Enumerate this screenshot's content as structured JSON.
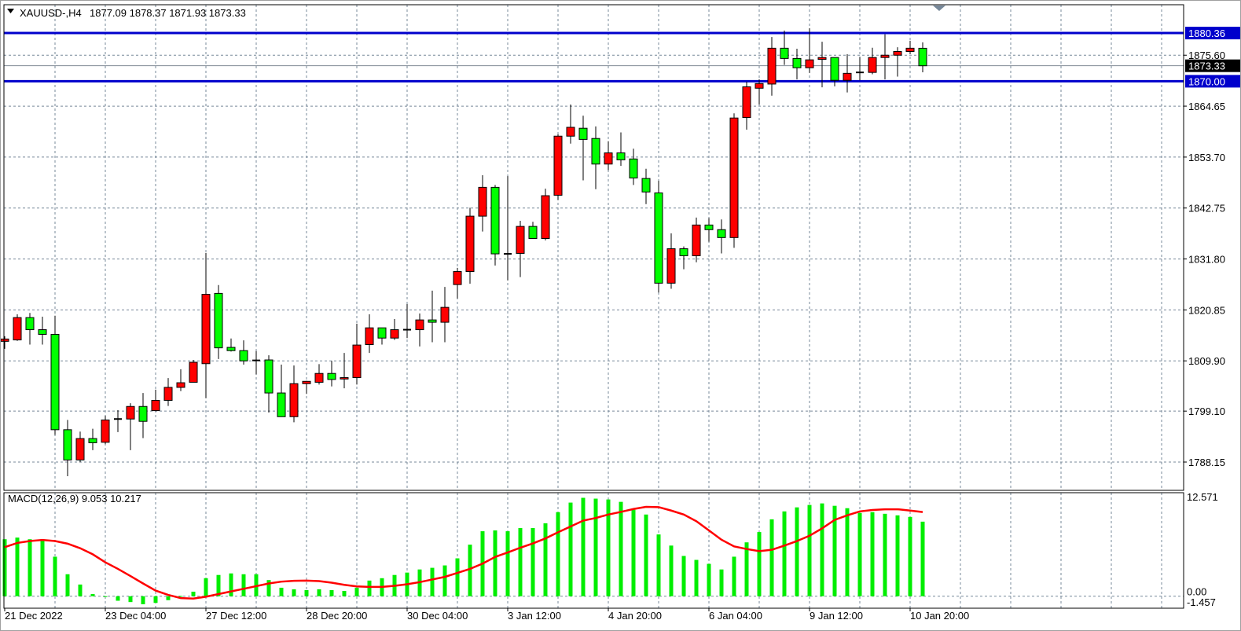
{
  "header": {
    "symbol_label": "XAUUSD-,H4",
    "ohlc_text": "1877.09 1878.37 1871.93 1873.33",
    "menu_icon": "triangle-down-icon",
    "shift_marker_icon": "chart-shift-triangle-icon"
  },
  "colors": {
    "bull_candle": "#ff0000",
    "bear_candle": "#00ff00",
    "horizontal_line": "#0000cc",
    "bid_line": "#808a94",
    "grid": "#778899",
    "macd_histogram": "#00ee00",
    "macd_signal": "#ff0000"
  },
  "chart_data": {
    "type": "candlestick",
    "symbol": "XAUUSD-",
    "timeframe": "H4",
    "grid": true,
    "ylim": [
      1782.07,
      1886.45
    ],
    "price_ticks": [
      "1875.60",
      "1864.65",
      "1853.70",
      "1842.75",
      "1831.80",
      "1820.85",
      "1809.90",
      "1799.10",
      "1788.15"
    ],
    "ohlc_fields": [
      "open",
      "high",
      "low",
      "close"
    ],
    "ohlc": [
      [
        1814.1,
        1815.2,
        1812.5,
        1814.6
      ],
      [
        1814.4,
        1819.9,
        1814.2,
        1819.2
      ],
      [
        1819.2,
        1820.2,
        1813.4,
        1816.6
      ],
      [
        1816.6,
        1819.4,
        1813.4,
        1815.6
      ],
      [
        1815.6,
        1819.6,
        1794.0,
        1795.1
      ],
      [
        1795.1,
        1797.2,
        1785.1,
        1788.6
      ],
      [
        1788.6,
        1794.7,
        1788.1,
        1793.2
      ],
      [
        1793.2,
        1795.3,
        1790.7,
        1792.3
      ],
      [
        1792.4,
        1798.1,
        1792.0,
        1797.2
      ],
      [
        1797.3,
        1799.3,
        1794.6,
        1797.4
      ],
      [
        1797.4,
        1800.8,
        1790.7,
        1800.1
      ],
      [
        1800.1,
        1803.0,
        1793.3,
        1796.9
      ],
      [
        1799.2,
        1803.7,
        1799.2,
        1801.4
      ],
      [
        1801.4,
        1806.2,
        1800.2,
        1804.2
      ],
      [
        1804.2,
        1808.1,
        1803.4,
        1805.2
      ],
      [
        1805.3,
        1810.1,
        1805.3,
        1809.6
      ],
      [
        1809.3,
        1833.1,
        1801.9,
        1824.2
      ],
      [
        1824.4,
        1826.2,
        1810.3,
        1812.7
      ],
      [
        1812.8,
        1814.7,
        1811.9,
        1812.1
      ],
      [
        1812.1,
        1814.3,
        1809.1,
        1809.9
      ],
      [
        1810.0,
        1812.0,
        1807.0,
        1809.9
      ],
      [
        1810.1,
        1811.1,
        1798.8,
        1803.0
      ],
      [
        1803.0,
        1809.1,
        1797.9,
        1797.9
      ],
      [
        1797.9,
        1808.9,
        1796.7,
        1805.0
      ],
      [
        1805.0,
        1805.6,
        1802.8,
        1805.5
      ],
      [
        1805.3,
        1809.2,
        1804.8,
        1807.2
      ],
      [
        1807.2,
        1809.9,
        1804.4,
        1805.9
      ],
      [
        1806.0,
        1811.6,
        1804.0,
        1806.3
      ],
      [
        1806.3,
        1817.9,
        1804.8,
        1813.3
      ],
      [
        1813.4,
        1819.9,
        1811.6,
        1817.0
      ],
      [
        1817.0,
        1817.0,
        1813.4,
        1814.8
      ],
      [
        1814.8,
        1818.9,
        1814.4,
        1816.6
      ],
      [
        1816.6,
        1822.1,
        1814.8,
        1816.5
      ],
      [
        1816.6,
        1820.1,
        1813.0,
        1818.7
      ],
      [
        1818.7,
        1825.0,
        1813.9,
        1818.2
      ],
      [
        1818.2,
        1825.8,
        1813.9,
        1821.4
      ],
      [
        1826.3,
        1829.9,
        1823.3,
        1829.1
      ],
      [
        1829.1,
        1842.8,
        1826.5,
        1841.0
      ],
      [
        1841.0,
        1849.8,
        1837.7,
        1847.2
      ],
      [
        1847.2,
        1847.7,
        1830.4,
        1832.9
      ],
      [
        1832.9,
        1849.6,
        1827.2,
        1832.9
      ],
      [
        1833.0,
        1840.0,
        1827.9,
        1838.8
      ],
      [
        1838.8,
        1839.8,
        1836.2,
        1836.2
      ],
      [
        1836.2,
        1846.9,
        1835.8,
        1845.4
      ],
      [
        1845.5,
        1858.6,
        1844.5,
        1858.2
      ],
      [
        1858.2,
        1865.0,
        1856.6,
        1860.1
      ],
      [
        1859.9,
        1862.6,
        1848.7,
        1857.5
      ],
      [
        1857.7,
        1860.3,
        1846.8,
        1852.2
      ],
      [
        1852.2,
        1857.1,
        1850.9,
        1854.6
      ],
      [
        1854.6,
        1859.0,
        1851.8,
        1853.1
      ],
      [
        1853.3,
        1855.5,
        1847.7,
        1849.2
      ],
      [
        1849.1,
        1851.2,
        1843.6,
        1846.2
      ],
      [
        1846.0,
        1848.6,
        1824.6,
        1826.6
      ],
      [
        1826.6,
        1837.3,
        1825.4,
        1834.0
      ],
      [
        1834.0,
        1834.5,
        1829.6,
        1832.5
      ],
      [
        1832.5,
        1840.7,
        1831.1,
        1839.1
      ],
      [
        1839.1,
        1840.6,
        1835.5,
        1838.1
      ],
      [
        1838.1,
        1840.3,
        1833.0,
        1836.4
      ],
      [
        1836.4,
        1863.1,
        1834.2,
        1862.1
      ],
      [
        1862.2,
        1869.9,
        1859.6,
        1868.8
      ],
      [
        1868.5,
        1870.4,
        1865.0,
        1869.5
      ],
      [
        1869.4,
        1879.5,
        1866.9,
        1877.1
      ],
      [
        1877.1,
        1880.9,
        1873.5,
        1874.9
      ],
      [
        1874.9,
        1877.0,
        1870.4,
        1872.9
      ],
      [
        1872.9,
        1881.4,
        1871.8,
        1874.6
      ],
      [
        1874.7,
        1878.5,
        1868.7,
        1875.1
      ],
      [
        1875.1,
        1875.1,
        1868.9,
        1870.2
      ],
      [
        1870.2,
        1875.8,
        1867.6,
        1871.7
      ],
      [
        1871.7,
        1875.2,
        1870.2,
        1871.9
      ],
      [
        1871.9,
        1877.2,
        1871.5,
        1875.1
      ],
      [
        1875.1,
        1880.1,
        1870.4,
        1875.6
      ],
      [
        1875.6,
        1877.3,
        1871.0,
        1876.4
      ],
      [
        1876.4,
        1878.7,
        1875.8,
        1877.1
      ],
      [
        1877.09,
        1878.37,
        1871.93,
        1873.33
      ]
    ],
    "x_tick_labels": [
      {
        "index": 0,
        "label": "21 Dec 2022"
      },
      {
        "index": 8,
        "label": "23 Dec 04:00"
      },
      {
        "index": 16,
        "label": "27 Dec 12:00"
      },
      {
        "index": 24,
        "label": "28 Dec 20:00"
      },
      {
        "index": 32,
        "label": "30 Dec 04:00"
      },
      {
        "index": 40,
        "label": "3 Jan 12:00"
      },
      {
        "index": 48,
        "label": "4 Jan 20:00"
      },
      {
        "index": 56,
        "label": "6 Jan 04:00"
      },
      {
        "index": 64,
        "label": "9 Jan 12:00"
      },
      {
        "index": 72,
        "label": "10 Jan 20:00"
      }
    ],
    "horizontal_lines": [
      {
        "value": 1880.36,
        "label": "1880.36",
        "style": "blue-box"
      },
      {
        "value": 1870.0,
        "label": "1870.00",
        "style": "blue-box"
      }
    ],
    "bid": {
      "value": 1873.33,
      "label": "1873.33"
    },
    "indicator": {
      "type": "bar+line",
      "label": "MACD(12,26,9) 9.053 10.217",
      "ylim": [
        -1.457,
        12.571
      ],
      "ticks": [
        "12.571",
        "0.00",
        "-1.457"
      ],
      "histogram": [
        6.92,
        7.12,
        6.92,
        6.7,
        4.8,
        2.67,
        1.42,
        0.26,
        -0.06,
        -0.55,
        -0.71,
        -0.97,
        -0.81,
        -0.48,
        0.03,
        0.55,
        2.19,
        2.58,
        2.77,
        2.67,
        2.67,
        1.96,
        1.03,
        0.84,
        0.74,
        0.84,
        0.74,
        0.64,
        1.03,
        1.9,
        2.19,
        2.58,
        2.87,
        3.25,
        3.45,
        3.74,
        4.6,
        6.26,
        7.89,
        7.99,
        7.89,
        8.28,
        8.28,
        8.86,
        10.21,
        11.37,
        11.95,
        11.85,
        11.75,
        11.46,
        10.5,
        9.92,
        7.5,
        6.15,
        4.89,
        4.41,
        3.93,
        3.25,
        4.8,
        6.54,
        7.79,
        9.34,
        10.3,
        10.79,
        11.08,
        11.27,
        10.98,
        10.69,
        10.11,
        10.21,
        10.01,
        9.82,
        9.63,
        9.053
      ],
      "signal": [
        5.96,
        6.47,
        6.7,
        6.83,
        6.7,
        6.38,
        5.83,
        5.09,
        4.12,
        3.32,
        2.45,
        1.55,
        0.68,
        0.16,
        -0.23,
        -0.29,
        -0.06,
        0.26,
        0.58,
        0.9,
        1.22,
        1.55,
        1.77,
        1.87,
        1.9,
        1.84,
        1.64,
        1.38,
        1.19,
        1.13,
        1.13,
        1.26,
        1.45,
        1.71,
        2.03,
        2.35,
        2.83,
        3.32,
        3.96,
        4.77,
        5.31,
        5.89,
        6.41,
        7.02,
        7.76,
        8.47,
        9.18,
        9.5,
        9.92,
        10.24,
        10.59,
        10.85,
        10.82,
        10.4,
        9.92,
        9.11,
        7.99,
        6.86,
        6.05,
        5.73,
        5.47,
        5.64,
        6.15,
        6.7,
        7.34,
        8.24,
        9.27,
        9.82,
        10.3,
        10.47,
        10.56,
        10.56,
        10.4,
        10.217
      ]
    }
  }
}
